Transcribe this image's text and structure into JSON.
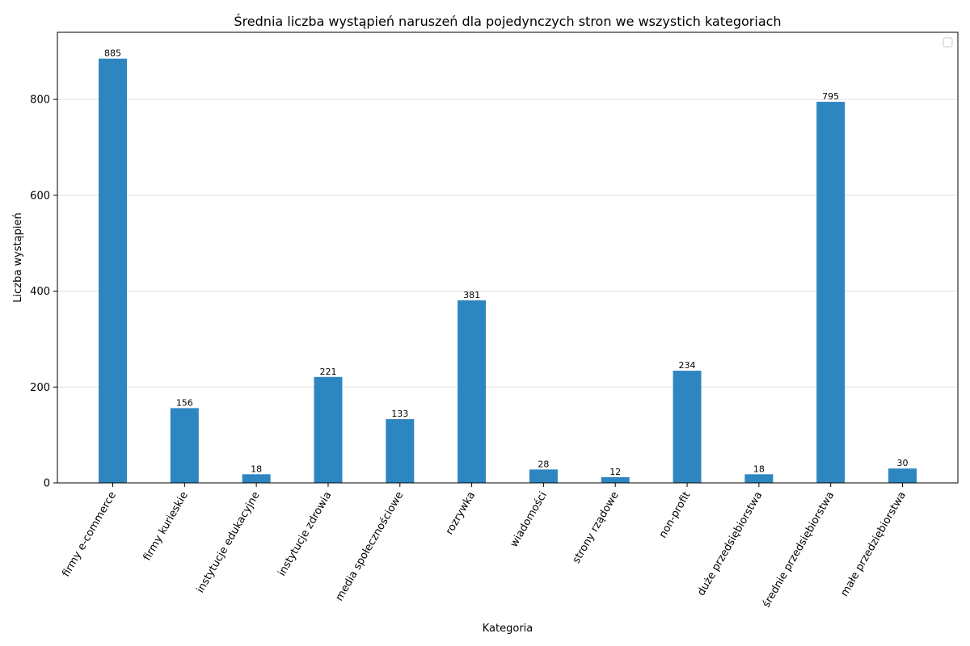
{
  "chart_data": {
    "type": "bar",
    "title": "Średnia liczba wystąpień naruszeń dla pojedynczych stron we wszystich kategoriach",
    "xlabel": "Kategoria",
    "ylabel": "Liczba wystąpień",
    "categories": [
      "firmy e-commerce",
      "firmy kurieskie",
      "instytucje edukacyjne",
      "instytucje zdrowia",
      "media społecznościowe",
      "rozrywka",
      "wiadomości",
      "strony rządowe",
      "non-profit",
      "duże przedsiębiorstwa",
      "średnie przedsiębiorstwa",
      "małe przedziębiorstwa"
    ],
    "values": [
      885,
      156,
      18,
      221,
      133,
      381,
      28,
      12,
      234,
      18,
      795,
      30
    ],
    "ylim": [
      0,
      940
    ],
    "yticks": [
      0,
      200,
      400,
      600,
      800
    ],
    "grid": "y",
    "legend": "top-right",
    "bar_color": "#2e86c1"
  }
}
